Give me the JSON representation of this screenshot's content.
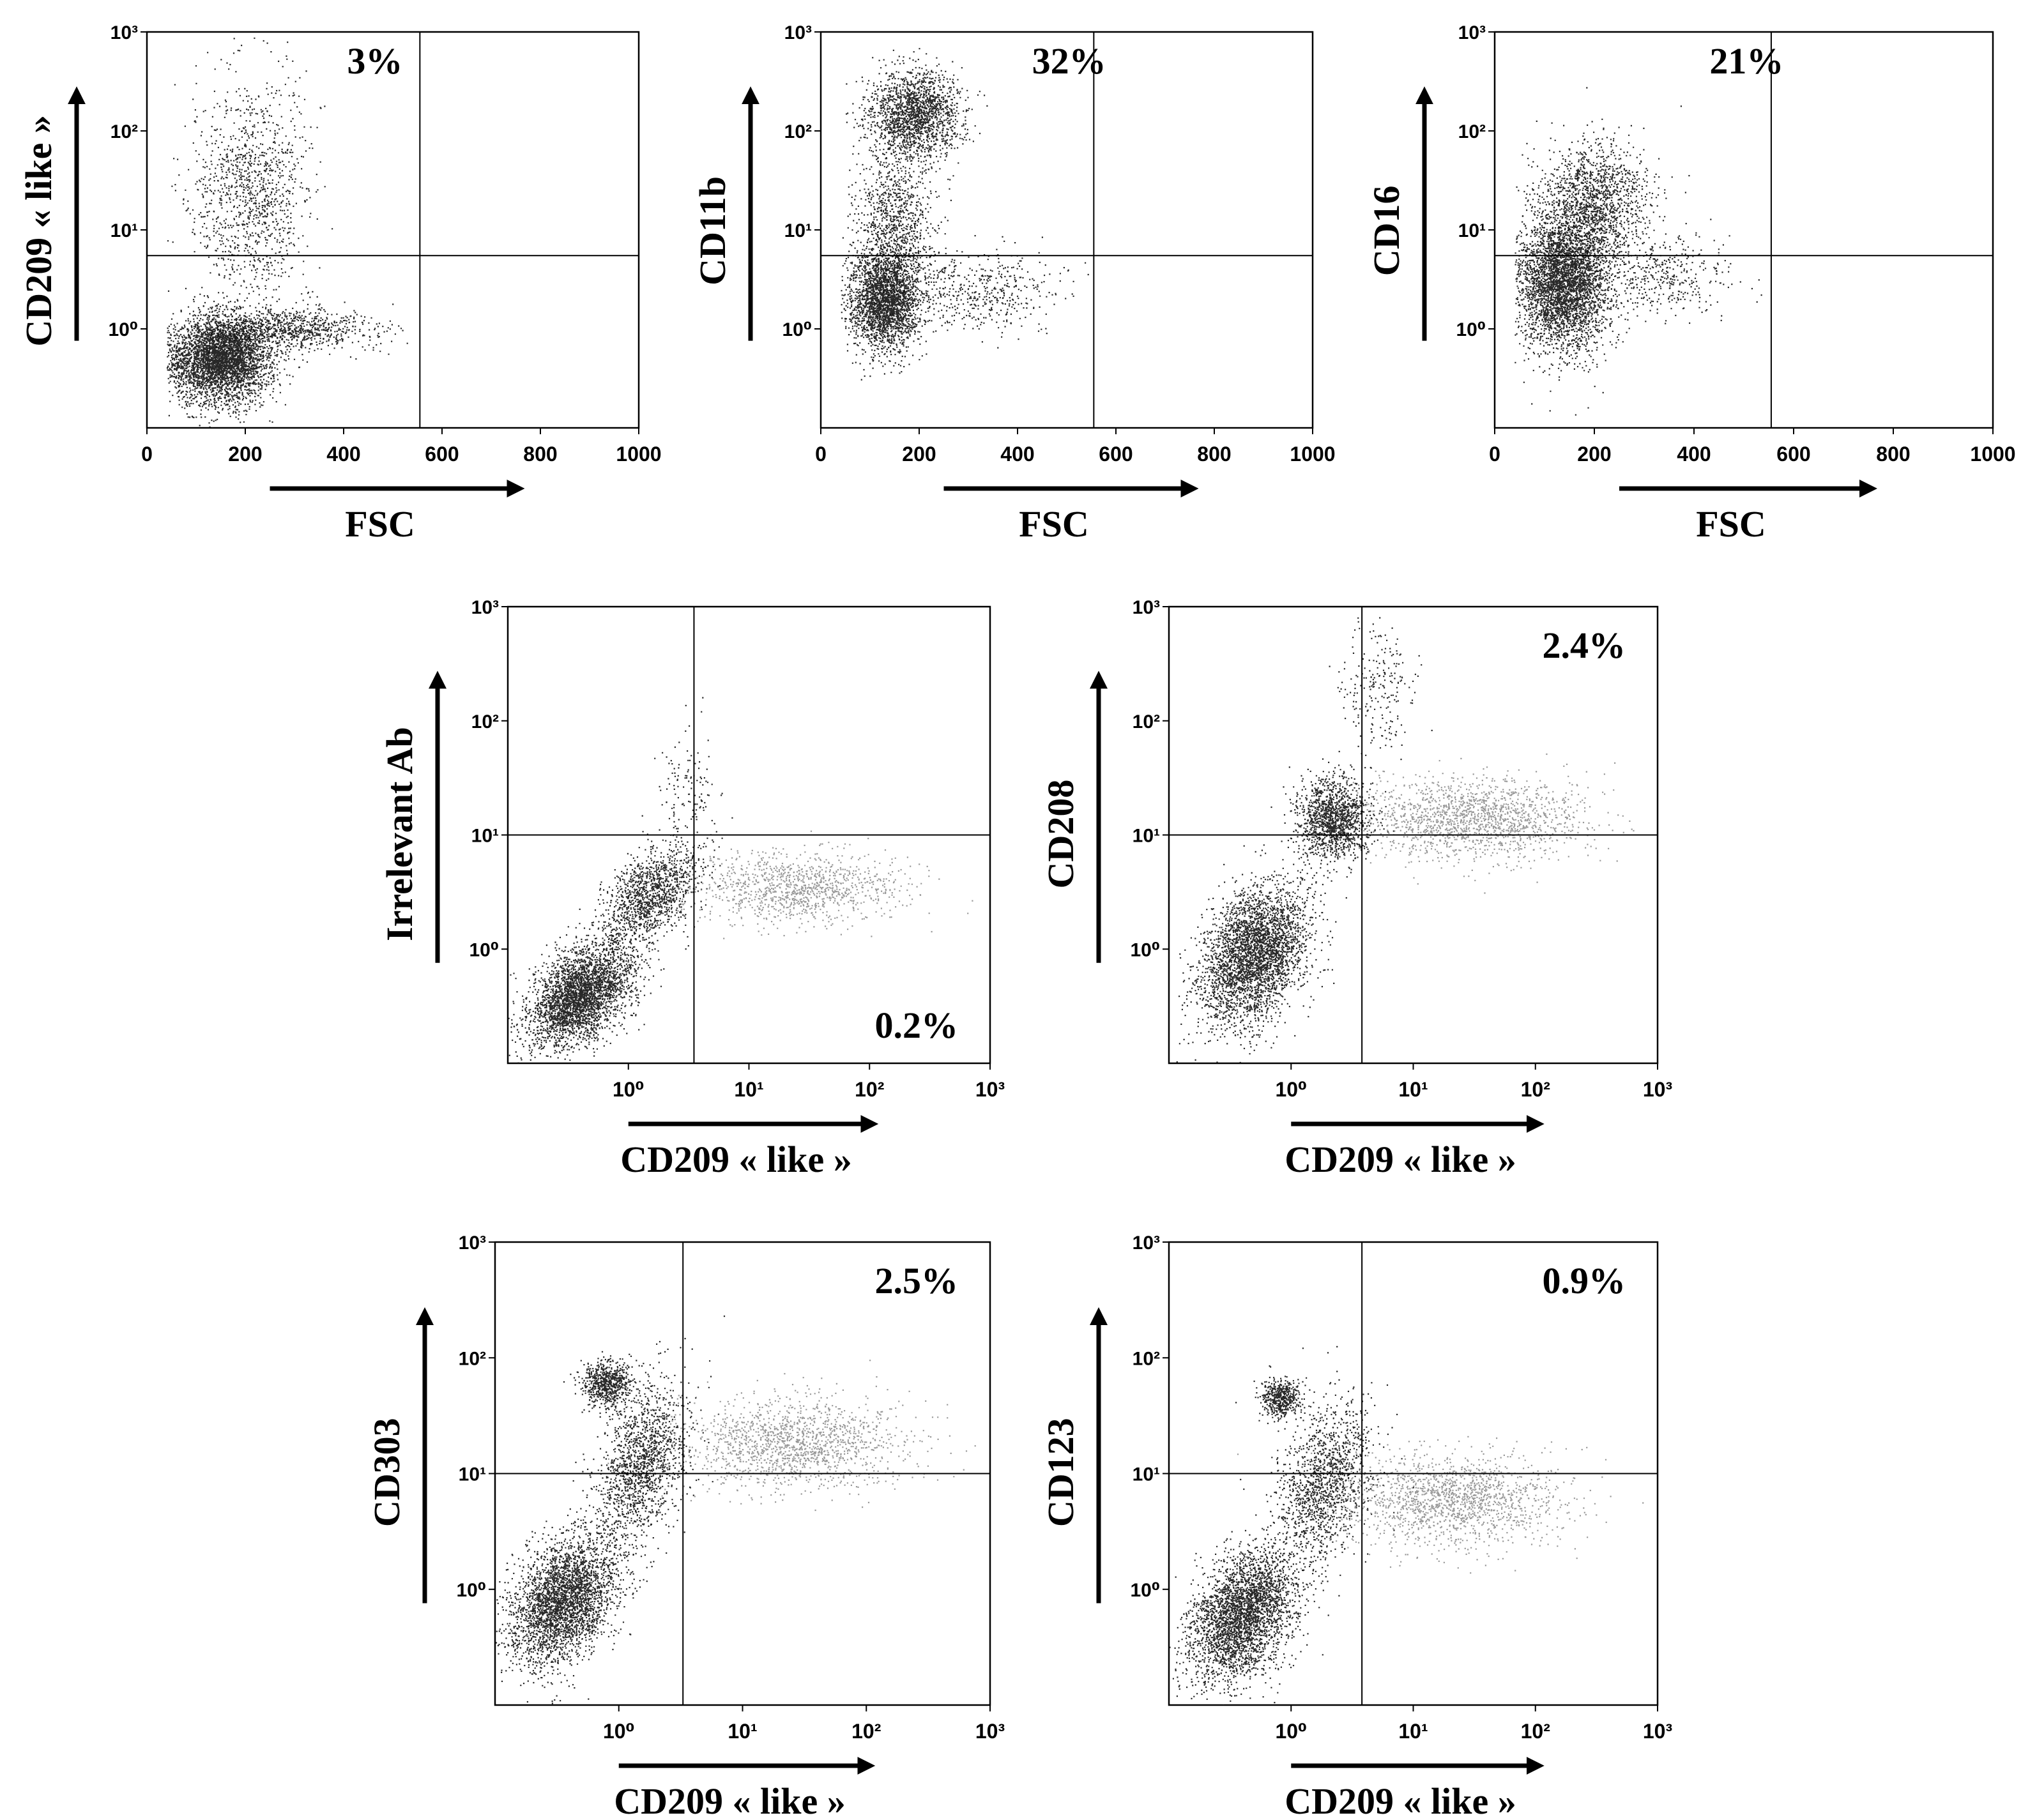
{
  "chart_data": [
    {
      "type": "scatter",
      "x_scale": "linear",
      "y_scale": "log",
      "xlim": [
        0,
        1000
      ],
      "ylim": [
        0.1,
        1000
      ],
      "xticks": [
        "0",
        "200",
        "400",
        "600",
        "800",
        "1000"
      ],
      "yticks": [
        {
          "v": 1,
          "label": "10⁰"
        },
        {
          "v": 10,
          "label": "10¹"
        },
        {
          "v": 100,
          "label": "10²"
        },
        {
          "v": 1000,
          "label": "10³"
        }
      ],
      "xlabel": "FSC",
      "ylabel": "CD209 « like »",
      "quadrant_x": 555,
      "quadrant_y": 5.5,
      "annotation": {
        "text": "3%",
        "position": "top-left"
      },
      "clusters": [
        {
          "cx": 150,
          "cy": 0.5,
          "sx": 50,
          "sy": 0.22,
          "n": 3800
        },
        {
          "cx": 280,
          "cy": 1.0,
          "sx": 90,
          "sy": 0.1,
          "n": 900
        },
        {
          "cx": 210,
          "cy": 25,
          "sx": 60,
          "sy": 0.55,
          "n": 1200
        }
      ]
    },
    {
      "type": "scatter",
      "x_scale": "linear",
      "y_scale": "log",
      "xlim": [
        0,
        1000
      ],
      "ylim": [
        0.1,
        1000
      ],
      "xticks": [
        "0",
        "200",
        "400",
        "600",
        "800",
        "1000"
      ],
      "yticks": [
        {
          "v": 1,
          "label": "10⁰"
        },
        {
          "v": 10,
          "label": "10¹"
        },
        {
          "v": 100,
          "label": "10²"
        },
        {
          "v": 1000,
          "label": "10³"
        }
      ],
      "xlabel": "FSC",
      "ylabel": "CD11b",
      "quadrant_x": 555,
      "quadrant_y": 5.5,
      "annotation": {
        "text": "32%",
        "position": "top-center"
      },
      "clusters": [
        {
          "cx": 130,
          "cy": 2.0,
          "sx": 35,
          "sy": 0.25,
          "n": 2600
        },
        {
          "cx": 190,
          "cy": 150,
          "sx": 45,
          "sy": 0.22,
          "n": 1800
        },
        {
          "cx": 150,
          "cy": 12,
          "sx": 40,
          "sy": 0.35,
          "n": 900
        },
        {
          "cx": 320,
          "cy": 2.5,
          "sx": 80,
          "sy": 0.2,
          "n": 500
        }
      ]
    },
    {
      "type": "scatter",
      "x_scale": "linear",
      "y_scale": "log",
      "xlim": [
        0,
        1000
      ],
      "ylim": [
        0.1,
        1000
      ],
      "xticks": [
        "0",
        "200",
        "400",
        "600",
        "800",
        "1000"
      ],
      "yticks": [
        {
          "v": 1,
          "label": "10⁰"
        },
        {
          "v": 10,
          "label": "10¹"
        },
        {
          "v": 100,
          "label": "10²"
        },
        {
          "v": 1000,
          "label": "10³"
        }
      ],
      "xlabel": "FSC",
      "ylabel": "CD16",
      "quadrant_x": 555,
      "quadrant_y": 5.5,
      "annotation": {
        "text": "21%",
        "position": "top-center"
      },
      "clusters": [
        {
          "cx": 140,
          "cy": 3.0,
          "sx": 45,
          "sy": 0.35,
          "n": 3800
        },
        {
          "cx": 200,
          "cy": 20,
          "sx": 55,
          "sy": 0.3,
          "n": 1400
        },
        {
          "cx": 330,
          "cy": 3.5,
          "sx": 70,
          "sy": 0.2,
          "n": 400
        }
      ]
    },
    {
      "type": "scatter",
      "x_scale": "log",
      "y_scale": "log",
      "xlim": [
        0.1,
        1000
      ],
      "ylim": [
        0.1,
        1000
      ],
      "xticks": [
        {
          "v": 1,
          "label": "10⁰"
        },
        {
          "v": 10,
          "label": "10¹"
        },
        {
          "v": 100,
          "label": "10²"
        },
        {
          "v": 1000,
          "label": "10³"
        }
      ],
      "yticks": [
        {
          "v": 1,
          "label": "10⁰"
        },
        {
          "v": 10,
          "label": "10¹"
        },
        {
          "v": 100,
          "label": "10²"
        },
        {
          "v": 1000,
          "label": "10³"
        }
      ],
      "xlabel": "CD209 « like »",
      "ylabel": "Irrelevant Ab",
      "quadrant_x": 3.5,
      "quadrant_y": 10,
      "annotation": {
        "text": "0.2%",
        "position": "bottom-right"
      },
      "clusters": [
        {
          "cx": 0.4,
          "cy": 0.4,
          "sx": 0.22,
          "sy": 0.22,
          "n": 3200,
          "rho": 0.45
        },
        {
          "cx": 1.5,
          "cy": 3.0,
          "sx": 0.2,
          "sy": 0.22,
          "n": 1300,
          "rho": 0.5
        },
        {
          "cx": 25,
          "cy": 3.5,
          "sx": 0.45,
          "sy": 0.15,
          "n": 1100,
          "gray": true
        },
        {
          "cx": 3.2,
          "cy": 25,
          "sx": 0.12,
          "sy": 0.22,
          "n": 120
        }
      ]
    },
    {
      "type": "scatter",
      "x_scale": "log",
      "y_scale": "log",
      "xlim": [
        0.1,
        1000
      ],
      "ylim": [
        0.1,
        1000
      ],
      "xticks": [
        {
          "v": 1,
          "label": "10⁰"
        },
        {
          "v": 10,
          "label": "10¹"
        },
        {
          "v": 100,
          "label": "10²"
        },
        {
          "v": 1000,
          "label": "10³"
        }
      ],
      "yticks": [
        {
          "v": 1,
          "label": "10⁰"
        },
        {
          "v": 10,
          "label": "10¹"
        },
        {
          "v": 100,
          "label": "10²"
        },
        {
          "v": 1000,
          "label": "10³"
        }
      ],
      "xlabel": "CD209 « like »",
      "ylabel": "CD208",
      "quadrant_x": 3.8,
      "quadrant_y": 10,
      "annotation": {
        "text": "2.4%",
        "position": "top-right"
      },
      "clusters": [
        {
          "cx": 0.5,
          "cy": 0.9,
          "sx": 0.22,
          "sy": 0.3,
          "n": 3400,
          "rho": 0.35
        },
        {
          "cx": 2.2,
          "cy": 14,
          "sx": 0.15,
          "sy": 0.18,
          "n": 1400
        },
        {
          "cx": 30,
          "cy": 14,
          "sx": 0.45,
          "sy": 0.18,
          "n": 1600,
          "gray": true
        },
        {
          "cx": 5,
          "cy": 200,
          "sx": 0.15,
          "sy": 0.3,
          "n": 220
        }
      ]
    },
    {
      "type": "scatter",
      "x_scale": "log",
      "y_scale": "log",
      "xlim": [
        0.1,
        1000
      ],
      "ylim": [
        0.1,
        1000
      ],
      "xticks": [
        {
          "v": 1,
          "label": "10⁰"
        },
        {
          "v": 10,
          "label": "10¹"
        },
        {
          "v": 100,
          "label": "10²"
        },
        {
          "v": 1000,
          "label": "10³"
        }
      ],
      "yticks": [
        {
          "v": 1,
          "label": "10⁰"
        },
        {
          "v": 10,
          "label": "10¹"
        },
        {
          "v": 100,
          "label": "10²"
        },
        {
          "v": 1000,
          "label": "10³"
        }
      ],
      "xlabel": "CD209 « like »",
      "ylabel": "CD303",
      "quadrant_x": 3.3,
      "quadrant_y": 10,
      "annotation": {
        "text": "2.5%",
        "position": "top-right"
      },
      "clusters": [
        {
          "cx": 0.35,
          "cy": 0.8,
          "sx": 0.22,
          "sy": 0.28,
          "n": 3200,
          "rho": 0.35
        },
        {
          "cx": 1.5,
          "cy": 12,
          "sx": 0.18,
          "sy": 0.35,
          "n": 1500,
          "rho": 0.4
        },
        {
          "cx": 0.8,
          "cy": 60,
          "sx": 0.1,
          "sy": 0.1,
          "n": 700
        },
        {
          "cx": 25,
          "cy": 18,
          "sx": 0.45,
          "sy": 0.2,
          "n": 1500,
          "gray": true
        }
      ]
    },
    {
      "type": "scatter",
      "x_scale": "log",
      "y_scale": "log",
      "xlim": [
        0.1,
        1000
      ],
      "ylim": [
        0.1,
        1000
      ],
      "xticks": [
        {
          "v": 1,
          "label": "10⁰"
        },
        {
          "v": 10,
          "label": "10¹"
        },
        {
          "v": 100,
          "label": "10²"
        },
        {
          "v": 1000,
          "label": "10³"
        }
      ],
      "yticks": [
        {
          "v": 1,
          "label": "10⁰"
        },
        {
          "v": 10,
          "label": "10¹"
        },
        {
          "v": 100,
          "label": "10²"
        },
        {
          "v": 1000,
          "label": "10³"
        }
      ],
      "xlabel": "CD209 « like »",
      "ylabel": "CD123",
      "quadrant_x": 3.8,
      "quadrant_y": 10,
      "annotation": {
        "text": "0.9%",
        "position": "top-right"
      },
      "clusters": [
        {
          "cx": 0.4,
          "cy": 0.6,
          "sx": 0.22,
          "sy": 0.28,
          "n": 3200,
          "rho": 0.35
        },
        {
          "cx": 1.8,
          "cy": 8,
          "sx": 0.2,
          "sy": 0.35,
          "n": 1400,
          "rho": 0.4
        },
        {
          "cx": 0.8,
          "cy": 45,
          "sx": 0.08,
          "sy": 0.08,
          "n": 500
        },
        {
          "cx": 20,
          "cy": 6,
          "sx": 0.45,
          "sy": 0.2,
          "n": 1600,
          "gray": true
        }
      ]
    }
  ]
}
